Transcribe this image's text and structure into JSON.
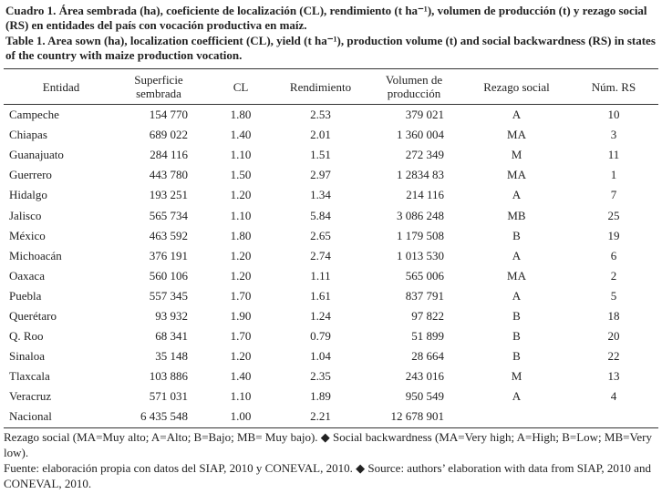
{
  "caption": {
    "es": "Cuadro 1. Área sembrada (ha), coeficiente de localización (CL), rendimiento (t ha⁻¹), volumen de producción (t) y rezago social (RS) en entidades del país con vocación productiva en maíz.",
    "en": "Table 1. Area sown (ha), localization coefficient (CL), yield (t ha⁻¹), production volume (t) and social backwardness (RS) in states of the country with maize production vocation."
  },
  "table": {
    "columns": [
      "Entidad",
      "Superficie sembrada",
      "CL",
      "Rendimiento",
      "Volumen de producción",
      "Rezago social",
      "Núm. RS"
    ],
    "rows": [
      [
        "Campeche",
        "154 770",
        "1.80",
        "2.53",
        "379 021",
        "A",
        "10"
      ],
      [
        "Chiapas",
        "689 022",
        "1.40",
        "2.01",
        "1 360 004",
        "MA",
        "3"
      ],
      [
        "Guanajuato",
        "284 116",
        "1.10",
        "1.51",
        "272 349",
        "M",
        "11"
      ],
      [
        "Guerrero",
        "443 780",
        "1.50",
        "2.97",
        "1 2834 83",
        "MA",
        "1"
      ],
      [
        "Hidalgo",
        "193 251",
        "1.20",
        "1.34",
        "214 116",
        "A",
        "7"
      ],
      [
        "Jalisco",
        "565 734",
        "1.10",
        "5.84",
        "3 086 248",
        "MB",
        "25"
      ],
      [
        "México",
        "463 592",
        "1.80",
        "2.65",
        "1 179 508",
        "B",
        "19"
      ],
      [
        "Michoacán",
        "376 191",
        "1.20",
        "2.74",
        "1 013 530",
        "A",
        "6"
      ],
      [
        "Oaxaca",
        "560 106",
        "1.20",
        "1.11",
        "565 006",
        "MA",
        "2"
      ],
      [
        "Puebla",
        "557 345",
        "1.70",
        "1.61",
        "837 791",
        "A",
        "5"
      ],
      [
        "Querétaro",
        "93 932",
        "1.90",
        "1.24",
        "97 822",
        "B",
        "18"
      ],
      [
        "Q. Roo",
        "68 341",
        "1.70",
        "0.79",
        "51 899",
        "B",
        "20"
      ],
      [
        "Sinaloa",
        "35 148",
        "1.20",
        "1.04",
        "28 664",
        "B",
        "22"
      ],
      [
        "Tlaxcala",
        "103 886",
        "1.40",
        "2.35",
        "243 016",
        "M",
        "13"
      ],
      [
        "Veracruz",
        "571 031",
        "1.10",
        "1.89",
        "950 549",
        "A",
        "4"
      ],
      [
        "Nacional",
        "6 435 548",
        "1.00",
        "2.21",
        "12 678 901",
        "",
        ""
      ]
    ]
  },
  "notes": [
    "Rezago social (MA=Muy alto; A=Alto; B=Bajo; MB= Muy bajo). ◆ Social backwardness (MA=Very high; A=High; B=Low; MB=Very low).",
    "Fuente: elaboración propia con datos del SIAP, 2010 y CONEVAL, 2010. ◆ Source: authors’ elaboration with data from SIAP, 2010 and CONEVAL, 2010."
  ]
}
